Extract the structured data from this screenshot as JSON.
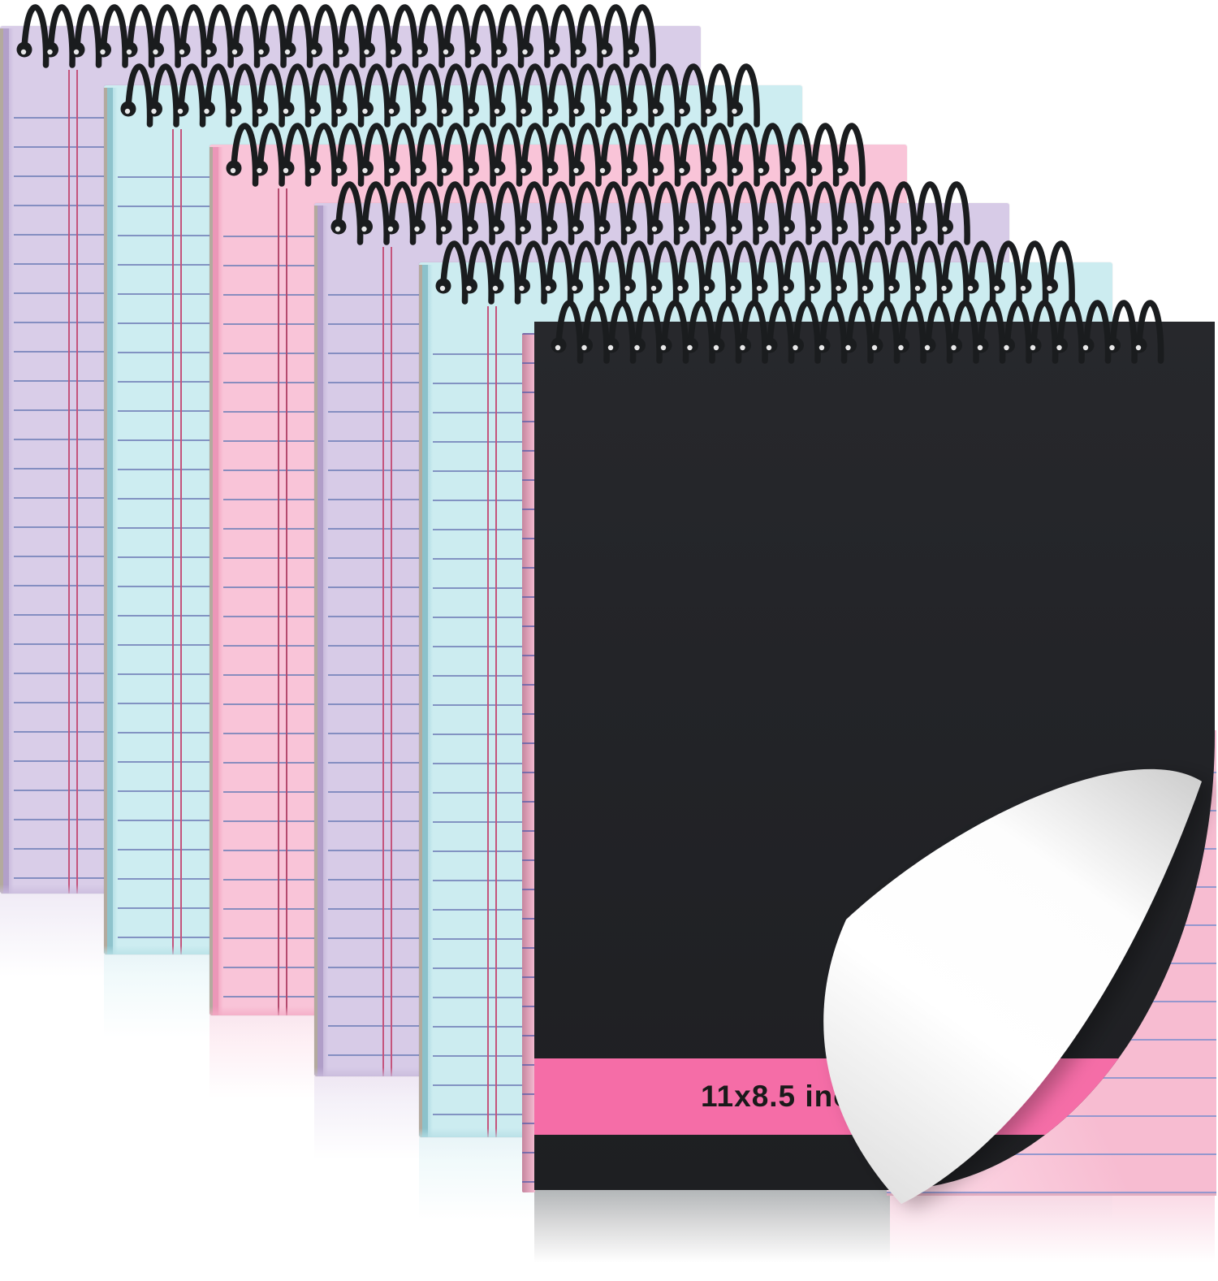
{
  "scene": {
    "background": "#ffffff",
    "description": "Six top-spiral steno notepads fanned diagonally on a white background; five pastel Gregg-ruled pads behind a front pad with a black cover, hot-pink size band and a curled corner revealing pink lined paper"
  },
  "notebooks": [
    {
      "type": "pastel",
      "name": "lavender-steno-pad-1",
      "paper": "#d9cde8",
      "side": "#cabcdd",
      "edge": "#b2a0c9",
      "line": "#7583ba",
      "margin": "#c4547c"
    },
    {
      "type": "pastel",
      "name": "blue-steno-pad-2",
      "paper": "#cdedf1",
      "side": "#b7e0e6",
      "edge": "#8ec3cc",
      "line": "#7583ba",
      "margin": "#c4547c"
    },
    {
      "type": "pastel",
      "name": "pink-steno-pad-3",
      "paper": "#f9c4d8",
      "side": "#f3abc5",
      "edge": "#eb97b8",
      "line": "#7583ba",
      "margin": "#b44a6e"
    },
    {
      "type": "pastel",
      "name": "lavender-steno-pad-4",
      "paper": "#d7cbe7",
      "side": "#c8badb",
      "edge": "#b09ec8",
      "line": "#7583ba",
      "margin": "#c4547c"
    },
    {
      "type": "pastel",
      "name": "blue-steno-pad-5",
      "paper": "#ccecf0",
      "side": "#b5dee5",
      "edge": "#8cc1ca",
      "line": "#7583ba",
      "margin": "#c4547c"
    },
    {
      "type": "black-cover",
      "name": "black-steno-pad-front",
      "cover": "#232428",
      "band": "#f56da7",
      "label": "11x8.5 inches",
      "label_color": "#1a1a1a",
      "page": "#f7bcd1",
      "page_line": "#8a93cd",
      "page_edge": "#f1a3c1",
      "curl": "#ffffff"
    }
  ],
  "spiral": {
    "wire_color": "#1a1c1e",
    "glint_color": "#ffffff"
  }
}
